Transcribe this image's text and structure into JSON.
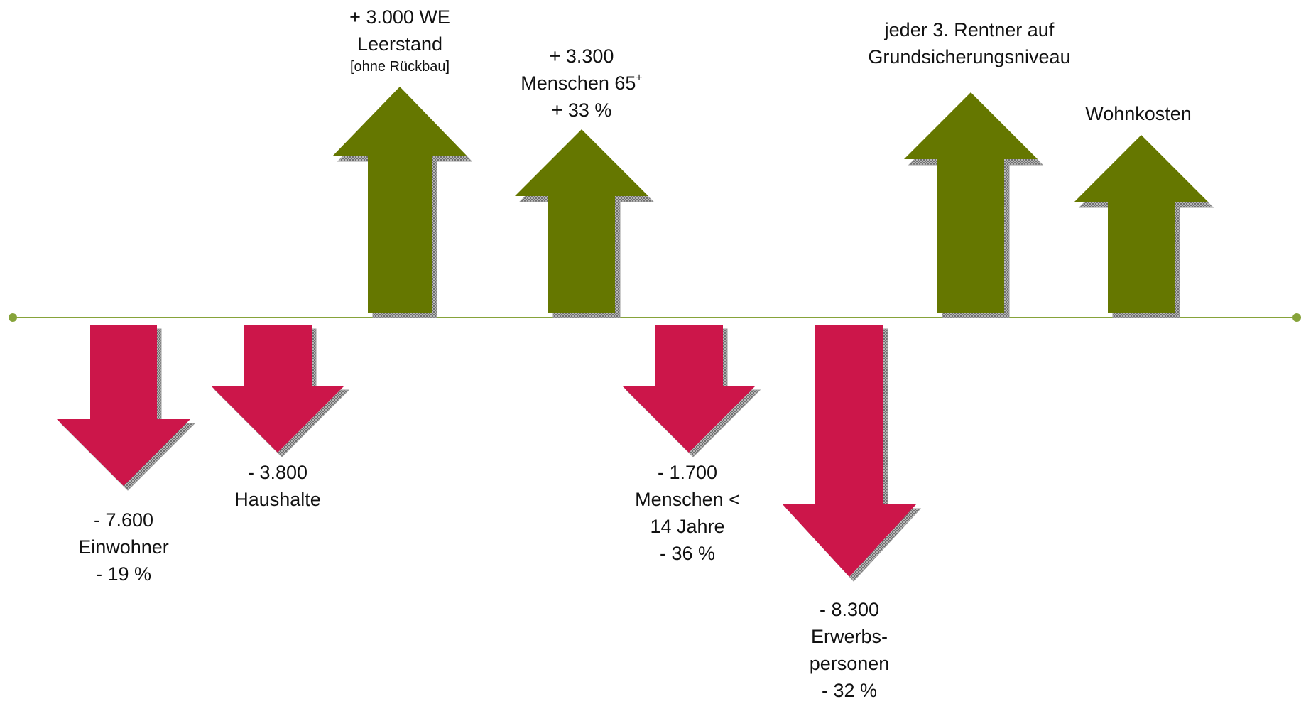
{
  "colors": {
    "axis": "#86a33a",
    "up": "#657700",
    "down": "#cc164a",
    "shadow": "#9a9a9a"
  },
  "items": [
    {
      "id": "einwohner",
      "direction": "down",
      "lines": [
        "- 7.600",
        "Einwohner",
        "- 19 %"
      ]
    },
    {
      "id": "haushalte",
      "direction": "down",
      "lines": [
        "- 3.800",
        "Haushalte"
      ]
    },
    {
      "id": "leerstand",
      "direction": "up",
      "lines": [
        "+ 3.000 WE",
        "Leerstand"
      ],
      "note": "[ohne Rückbau]"
    },
    {
      "id": "menschen-65",
      "direction": "up",
      "lines": [
        "+ 3.300",
        "Menschen 65",
        "+ 33 %"
      ],
      "superscript": "+"
    },
    {
      "id": "menschen-14",
      "direction": "down",
      "lines": [
        "- 1.700",
        "Menschen <",
        "14 Jahre",
        "- 36 %"
      ]
    },
    {
      "id": "erwerbspersonen",
      "direction": "down",
      "lines": [
        "- 8.300",
        "Erwerbs-",
        "personen",
        "- 32 %"
      ]
    },
    {
      "id": "rentner",
      "direction": "up",
      "lines": [
        "jeder 3. Rentner auf",
        "Grundsicherungsniveau"
      ]
    },
    {
      "id": "wohnkosten",
      "direction": "up",
      "lines": [
        "Wohnkosten"
      ]
    }
  ]
}
